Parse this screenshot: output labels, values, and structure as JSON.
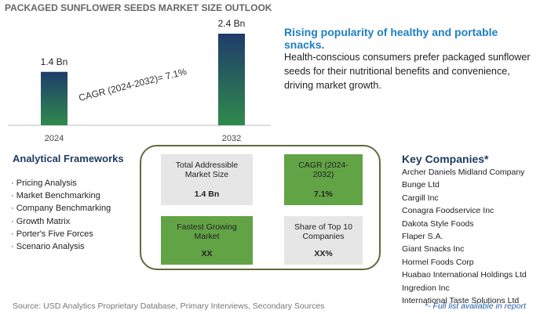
{
  "title": "PACKAGED SUNFLOWER SEEDS MARKET SIZE OUTLOOK",
  "chart_data": {
    "type": "bar",
    "categories": [
      "2024",
      "2032"
    ],
    "values": [
      1.4,
      2.4
    ],
    "value_labels": [
      "1.4 Bn",
      "2.4 Bn"
    ],
    "colors": [
      "#2f8a4c",
      "#1f3c6b"
    ],
    "annotation": "CAGR (2024-2032)=  7.1%"
  },
  "highlight": {
    "heading": "Rising popularity of healthy and portable snacks.",
    "text": "Health-conscious consumers prefer packaged sunflower seeds for their nutritional benefits and convenience, driving market growth."
  },
  "frameworks": {
    "title": "Analytical Frameworks",
    "items": [
      "Pricing Analysis",
      "Market Benchmarking",
      "Company Benchmarking",
      "Growth Matrix",
      "Porter's Five Forces",
      "Scenario Analysis"
    ]
  },
  "metrics": [
    {
      "label": "Total Addressible Market Size",
      "value": "1.4 Bn"
    },
    {
      "label": "CAGR (2024-2032)",
      "value": "7.1%"
    },
    {
      "label": "Fastest Growing Market",
      "value": "XX"
    },
    {
      "label": "Share of Top 10 Companies",
      "value": "XX%"
    }
  ],
  "companies": {
    "title": "Key Companies*",
    "items": [
      "Archer Daniels Midland Company",
      "Bunge Ltd",
      "Cargill Inc",
      "Conagra Foodservice Inc",
      "Dakota Style Foods",
      "Flaper S.A.",
      "Giant Snacks Inc",
      "Hormel Foods Corp",
      "Huabao International Holdings Ltd",
      "Ingredion Inc",
      "International Taste Solutions Ltd"
    ],
    "note": "*- Full list available in report"
  },
  "source": "Source: USD Analytics Proprietary Database, Primary Interviews, Secondary Sources"
}
